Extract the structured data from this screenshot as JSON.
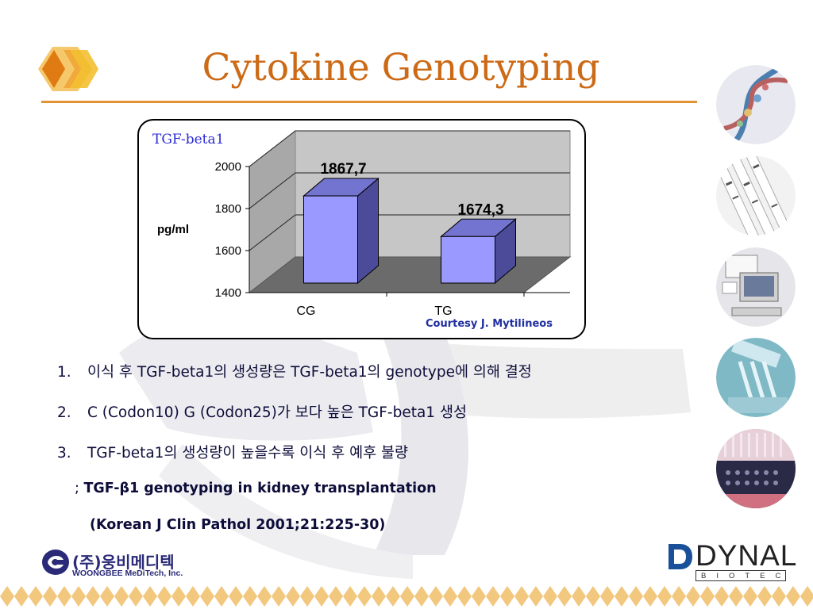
{
  "title": "Cytokine Genotyping",
  "colors": {
    "title": "#cc6a16",
    "rule": "#e29332",
    "bar_front": "#9999ff",
    "bar_side": "#4b4b9a",
    "series_label": "#2b2bd4",
    "courtesy": "#1f2fa0",
    "watermark": "#e9e9ee"
  },
  "chart_data": {
    "type": "bar",
    "series_label": "TGF-beta1",
    "ylabel": "pg/ml",
    "categories": [
      "CG",
      "TG"
    ],
    "values": [
      1867.7,
      1674.3
    ],
    "value_labels": [
      "1867,7",
      "1674,3"
    ],
    "yticks": [
      "1400",
      "1600",
      "1800",
      "2000"
    ],
    "ylim": [
      1400,
      2000
    ],
    "grid": true,
    "three_d": true,
    "credit": "Courtesy J. Mytilineos"
  },
  "list": [
    {
      "num": "1.",
      "text": "이식 후 TGF-beta1의 생성량은 TGF-beta1의 genotype에 의해 결정"
    },
    {
      "num": "2.",
      "text": "C (Codon10) G (Codon25)가 보다 높은 TGF-beta1 생성"
    },
    {
      "num": "3.",
      "text": "TGF-beta1의 생성량이 높을수록 이식 후 예후 불량"
    }
  ],
  "reference": {
    "prefix": ";",
    "title": "TGF-β1 genotyping in kidney transplantation",
    "citation": "(Korean J Clin Pathol 2001;21:225-30)"
  },
  "footer": {
    "company_kr": "(주)웅비메디텍",
    "company_en": "WOONGBEE MeDiTech, Inc.",
    "partner": "DYNAL",
    "partner_sub": "BIOTECH"
  },
  "side_images": [
    "dna-helix-icon",
    "gel-strips-icon",
    "computer-workstation-icon",
    "pipette-tips-icon",
    "microplate-icon"
  ]
}
